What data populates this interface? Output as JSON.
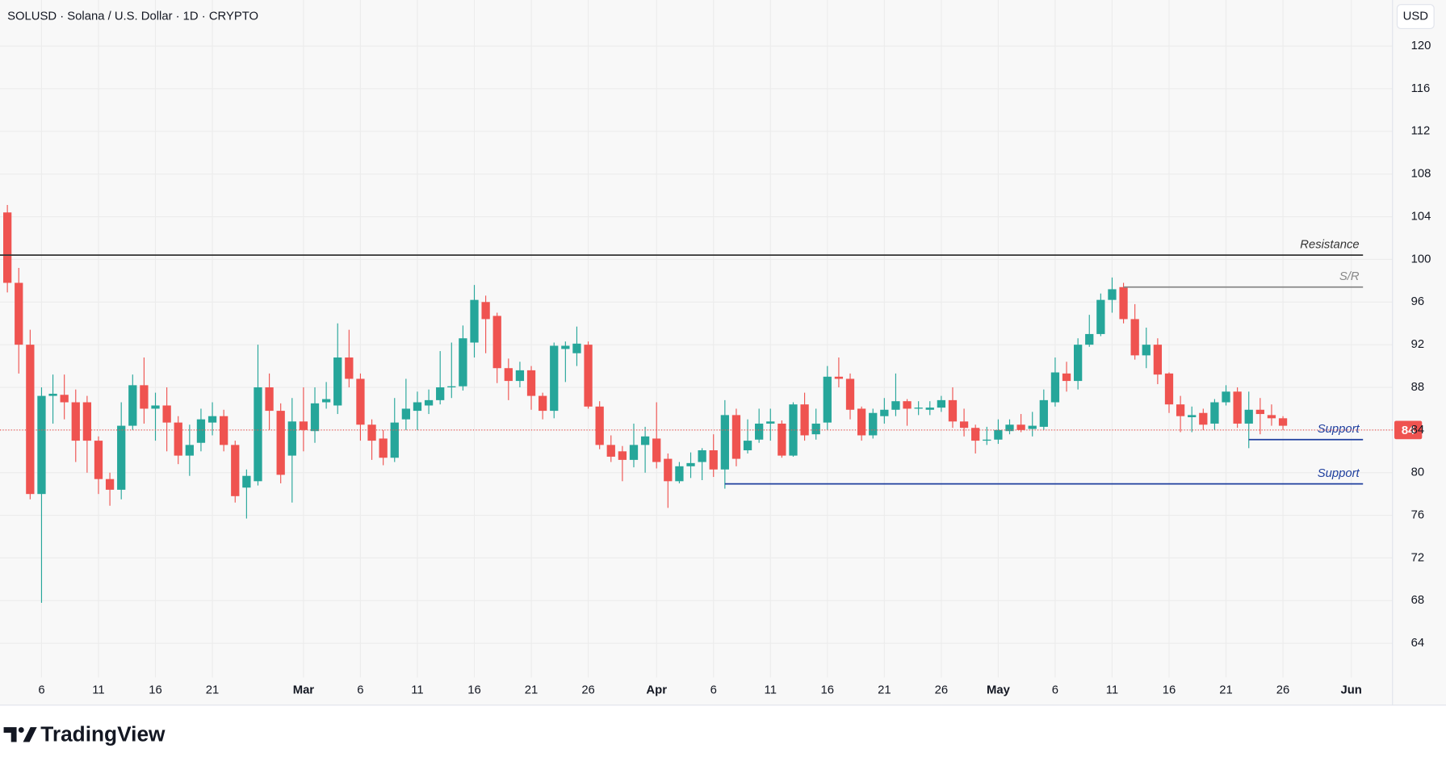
{
  "header": {
    "title": "SOLUSD · Solana / U.S. Dollar · 1D · CRYPTO",
    "currency_button": "USD"
  },
  "footer": {
    "brand": "TradingView"
  },
  "chart_data": {
    "type": "candlestick",
    "categories": [
      "Feb 3",
      "Feb 4",
      "Feb 5",
      "Feb 6",
      "Feb 7",
      "Feb 8",
      "Feb 9",
      "Feb 10",
      "Feb 11",
      "Feb 12",
      "Feb 13",
      "Feb 14",
      "Feb 15",
      "Feb 16",
      "Feb 17",
      "Feb 18",
      "Feb 19",
      "Feb 20",
      "Feb 21",
      "Feb 22",
      "Feb 23",
      "Feb 24",
      "Feb 25",
      "Feb 26",
      "Feb 27",
      "Feb 28",
      "Mar 1",
      "Mar 2",
      "Mar 3",
      "Mar 4",
      "Mar 5",
      "Mar 6",
      "Mar 7",
      "Mar 8",
      "Mar 9",
      "Mar 10",
      "Mar 11",
      "Mar 12",
      "Mar 13",
      "Mar 14",
      "Mar 15",
      "Mar 16",
      "Mar 17",
      "Mar 18",
      "Mar 19",
      "Mar 20",
      "Mar 21",
      "Mar 22",
      "Mar 23",
      "Mar 24",
      "Mar 25",
      "Mar 26",
      "Mar 27",
      "Mar 28",
      "Mar 29",
      "Mar 30",
      "Mar 31",
      "Apr 1",
      "Apr 2",
      "Apr 3",
      "Apr 4",
      "Apr 5",
      "Apr 6",
      "Apr 7",
      "Apr 8",
      "Apr 9",
      "Apr 10",
      "Apr 11",
      "Apr 12",
      "Apr 13",
      "Apr 14",
      "Apr 15",
      "Apr 16",
      "Apr 17",
      "Apr 18",
      "Apr 19",
      "Apr 20",
      "Apr 21",
      "Apr 22",
      "Apr 23",
      "Apr 24",
      "Apr 25",
      "Apr 26",
      "Apr 27",
      "Apr 28",
      "Apr 29",
      "Apr 30",
      "May 1",
      "May 2",
      "May 3",
      "May 4",
      "May 5",
      "May 6",
      "May 7",
      "May 8",
      "May 9",
      "May 10",
      "May 11",
      "May 12",
      "May 13",
      "May 14",
      "May 15",
      "May 16",
      "May 17",
      "May 18",
      "May 19",
      "May 20",
      "May 21",
      "May 22",
      "May 23",
      "May 24",
      "May 25",
      "May 26"
    ],
    "open": [
      104.4,
      97.8,
      92,
      78,
      87.2,
      87.3,
      86.6,
      86.6,
      83,
      79.4,
      78.4,
      84.4,
      88.2,
      86,
      86.3,
      84.7,
      81.6,
      82.8,
      84.7,
      85.3,
      82.6,
      78.6,
      79.2,
      88,
      85.8,
      81.6,
      84.8,
      83.9,
      86.6,
      86.3,
      90.8,
      88.8,
      84.5,
      83.2,
      81.4,
      85,
      85.8,
      86.3,
      86.8,
      88,
      88.1,
      92.2,
      96,
      94.7,
      89.8,
      88.6,
      89.6,
      87.2,
      85.8,
      91.6,
      91.2,
      92,
      86.2,
      82.6,
      82,
      81.2,
      82.6,
      83.2,
      81.3,
      79.2,
      80.6,
      81,
      82.1,
      80.3,
      85.4,
      82.1,
      83.1,
      84.6,
      84.6,
      81.6,
      86.4,
      83.6,
      84.7,
      89,
      88.8,
      86,
      83.5,
      85.3,
      85.9,
      86.7,
      86,
      85.9,
      86.1,
      86.8,
      84.8,
      84.2,
      83,
      83.1,
      83.9,
      84.5,
      84.1,
      84.3,
      86.6,
      89.3,
      88.6,
      92,
      93,
      96.2,
      97.4,
      94.4,
      91,
      92,
      89.3,
      86.4,
      85.2,
      85.6,
      84.6,
      86.6,
      87.6,
      84.6,
      85.9,
      85.4,
      85.1
    ],
    "high": [
      105.1,
      99.2,
      93.4,
      88,
      89.2,
      89.2,
      87.8,
      87.2,
      83.4,
      80,
      86.6,
      89.2,
      90.8,
      87.5,
      88,
      85.3,
      84.5,
      86,
      86.6,
      85.9,
      83,
      80.3,
      92,
      89.3,
      86.5,
      87,
      88,
      88,
      88.5,
      94,
      93.4,
      89.3,
      85,
      84,
      87,
      88.8,
      87.6,
      87.8,
      91.4,
      92.2,
      93.8,
      97.6,
      96.6,
      95,
      90.7,
      90.4,
      90,
      87.5,
      92.2,
      92.3,
      93.7,
      92.3,
      86.7,
      83.5,
      82.5,
      84.6,
      84.3,
      86.6,
      81.8,
      81,
      81.9,
      82.3,
      83.6,
      86.8,
      86,
      85,
      86,
      86,
      84.9,
      86.6,
      87.5,
      86,
      90,
      90.8,
      89.3,
      86.2,
      86,
      87,
      89.3,
      86.9,
      86.7,
      86.7,
      87.2,
      88,
      86,
      84.5,
      84.3,
      85,
      85,
      85.5,
      85.7,
      87.8,
      90.8,
      90.4,
      92.6,
      94.8,
      96.8,
      98.3,
      97.8,
      95.8,
      93.6,
      92.6,
      89.4,
      87.2,
      86.2,
      86,
      86.9,
      88.2,
      88,
      87.6,
      87,
      86.4,
      85.3
    ],
    "low": [
      96.9,
      89.3,
      77.5,
      67.8,
      84.6,
      85,
      81,
      80,
      78,
      76.9,
      77.5,
      84,
      84.6,
      83,
      82,
      80.8,
      79.7,
      82,
      83.5,
      82,
      77.2,
      75.7,
      78.8,
      84,
      79,
      77.2,
      82,
      82.8,
      86,
      85.5,
      88,
      83,
      81.2,
      80.7,
      81,
      84,
      84,
      85.5,
      86.4,
      87,
      87.7,
      90.8,
      91.2,
      88.4,
      86.8,
      88,
      85.9,
      85,
      85.1,
      88.5,
      90,
      86,
      82.2,
      81,
      79.2,
      80.5,
      80,
      80.4,
      76.7,
      79,
      79.5,
      79.3,
      79.6,
      78.5,
      80.6,
      81.8,
      82.8,
      83,
      81.4,
      81.5,
      83,
      83.1,
      84,
      88,
      85,
      83,
      83.2,
      84.6,
      85.3,
      84.4,
      85.4,
      85.4,
      85.7,
      84.2,
      83.4,
      81.8,
      82.6,
      82.7,
      83.6,
      83.8,
      83.4,
      84,
      86.2,
      87.6,
      87.8,
      91.8,
      92.8,
      95,
      94,
      90.6,
      89.8,
      88.3,
      85.6,
      83.8,
      83.8,
      84,
      84,
      86.3,
      84.2,
      82.3,
      83.6,
      84.4,
      84
    ],
    "close": [
      97.8,
      92,
      78,
      87.2,
      87.4,
      86.6,
      83,
      83,
      79.4,
      78.4,
      84.4,
      88.2,
      86,
      86.3,
      84.7,
      81.6,
      82.6,
      85,
      85.3,
      82.6,
      77.8,
      79.7,
      88,
      85.8,
      79.8,
      84.8,
      84,
      86.5,
      86.9,
      90.8,
      88.8,
      84.5,
      83,
      81.4,
      84.7,
      86,
      86.6,
      86.8,
      88,
      88.1,
      92.6,
      96.2,
      94.4,
      89.8,
      88.6,
      89.6,
      87.2,
      85.8,
      91.9,
      91.9,
      92.1,
      86.2,
      82.6,
      81.5,
      81.2,
      82.6,
      83.4,
      81,
      79.2,
      80.6,
      80.9,
      82.1,
      80.3,
      85.4,
      81.3,
      83,
      84.6,
      84.8,
      81.6,
      86.4,
      83.5,
      84.6,
      89,
      88.8,
      85.9,
      83.5,
      85.6,
      85.9,
      86.7,
      86,
      86.1,
      86.1,
      86.8,
      84.8,
      84.2,
      83,
      83.1,
      84,
      84.5,
      84,
      84.4,
      86.8,
      89.4,
      88.6,
      92,
      93,
      96.2,
      97.2,
      94.4,
      91,
      92,
      89.2,
      86.4,
      85.3,
      85.4,
      84.5,
      86.6,
      87.6,
      84.6,
      85.9,
      85.5,
      85.1,
      84.4
    ],
    "up_color": "#26a69a",
    "down_color": "#ef5350",
    "ylim": [
      60.8,
      124.32
    ],
    "yticks": [
      64,
      68,
      72,
      76,
      80,
      84,
      88,
      92,
      96,
      100,
      104,
      108,
      112,
      116,
      120
    ],
    "xticks": [
      {
        "value": "Feb 6",
        "label": "6"
      },
      {
        "value": "Feb 11",
        "label": "11"
      },
      {
        "value": "Feb 16",
        "label": "16"
      },
      {
        "value": "Feb 21",
        "label": "21"
      },
      {
        "value": "Mar 1",
        "label": "Mar"
      },
      {
        "value": "Mar 6",
        "label": "6"
      },
      {
        "value": "Mar 11",
        "label": "11"
      },
      {
        "value": "Mar 16",
        "label": "16"
      },
      {
        "value": "Mar 21",
        "label": "21"
      },
      {
        "value": "Mar 26",
        "label": "26"
      },
      {
        "value": "Apr 1",
        "label": "Apr"
      },
      {
        "value": "Apr 6",
        "label": "6"
      },
      {
        "value": "Apr 11",
        "label": "11"
      },
      {
        "value": "Apr 16",
        "label": "16"
      },
      {
        "value": "Apr 21",
        "label": "21"
      },
      {
        "value": "Apr 26",
        "label": "26"
      },
      {
        "value": "May 1",
        "label": "May"
      },
      {
        "value": "May 6",
        "label": "6"
      },
      {
        "value": "May 11",
        "label": "11"
      },
      {
        "value": "May 16",
        "label": "16"
      },
      {
        "value": "May 21",
        "label": "21"
      },
      {
        "value": "May 26",
        "label": "26"
      },
      {
        "value": "Jun 1",
        "label": "Jun"
      }
    ],
    "grid": true,
    "levels": [
      {
        "label": "Resistance",
        "value": 100.4,
        "color": "#333333"
      },
      {
        "label": "S/R",
        "value": 97.4,
        "from": "May 12",
        "color": "#888888"
      },
      {
        "label": "Support",
        "value": 83.1,
        "from": "May 23",
        "color": "#1f3f9e"
      },
      {
        "label": "Support",
        "value": 78.95,
        "from": "Apr 7",
        "color": "#1f3f9e"
      }
    ],
    "last_price": 84,
    "last_price_color": "#ef5350"
  }
}
